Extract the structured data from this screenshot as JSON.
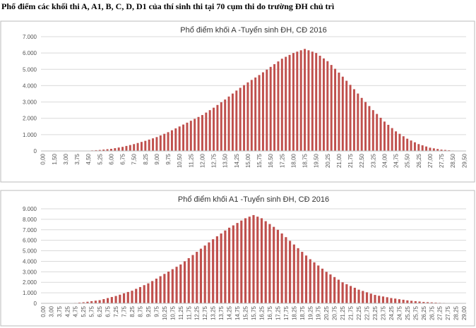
{
  "heading": "Phổ điểm các khối thi A, A1, B, C, D, D1 của thí sinh thi tại 70 cụm thi do trường ĐH chủ trì",
  "chart_data": [
    {
      "type": "bar",
      "title": "Phổ điểm khối A -Tuyển sinh ĐH, CĐ 2016",
      "color": "#c0504d",
      "grid": true,
      "ylim": [
        0,
        7000
      ],
      "yticks": [
        0,
        {
          "value": 1000,
          "label": "1.000"
        },
        {
          "value": 2000,
          "label": "2.000"
        },
        {
          "value": 3000,
          "label": "3.000"
        },
        {
          "value": 4000,
          "label": "4.000"
        },
        {
          "value": 5000,
          "label": "5.000"
        },
        {
          "value": 6000,
          "label": "6.000"
        },
        {
          "value": 7000,
          "label": "7.000"
        }
      ],
      "categories": [
        "0,00",
        null,
        null,
        "1,50",
        null,
        null,
        "3,00",
        null,
        null,
        "3,75",
        null,
        null,
        "4,50",
        null,
        null,
        "5,25",
        null,
        null,
        "6,00",
        null,
        null,
        "6,75",
        null,
        null,
        "7,50",
        null,
        null,
        "8,25",
        null,
        null,
        "9,00",
        null,
        null,
        "9,75",
        null,
        null,
        "10,50",
        null,
        null,
        "11,25",
        null,
        null,
        "12,00",
        null,
        null,
        "12,75",
        null,
        null,
        "13,50",
        null,
        null,
        "14,25",
        null,
        null,
        "15,00",
        null,
        null,
        "15,75",
        null,
        null,
        "16,50",
        null,
        null,
        "17,25",
        null,
        null,
        "18,00",
        null,
        null,
        "18,75",
        null,
        null,
        "19,50",
        null,
        null,
        "20,25",
        null,
        null,
        "21,00",
        null,
        null,
        "21,75",
        null,
        null,
        "22,50",
        null,
        null,
        "23,25",
        null,
        null,
        "24,00",
        null,
        null,
        "24,75",
        null,
        null,
        "25,50",
        null,
        null,
        "26,25",
        null,
        null,
        "27,00",
        null,
        null,
        "27,75",
        null,
        null,
        "28,50",
        null,
        null,
        "29,50"
      ],
      "values": [
        0,
        0,
        0,
        0,
        0,
        0,
        5,
        5,
        5,
        10,
        12,
        15,
        20,
        33,
        47,
        60,
        83,
        107,
        130,
        170,
        210,
        250,
        307,
        363,
        420,
        487,
        553,
        620,
        697,
        773,
        850,
        950,
        1050,
        1150,
        1267,
        1383,
        1500,
        1617,
        1733,
        1850,
        1967,
        2083,
        2200,
        2350,
        2500,
        2650,
        2817,
        2983,
        3150,
        3333,
        3517,
        3700,
        3867,
        4033,
        4200,
        4350,
        4500,
        4650,
        4817,
        4983,
        5150,
        5317,
        5483,
        5650,
        5767,
        5883,
        6000,
        6083,
        6167,
        6250,
        6167,
        6083,
        6000,
        5833,
        5667,
        5500,
        5267,
        5033,
        4800,
        4550,
        4300,
        4050,
        3783,
        3517,
        3250,
        3000,
        2750,
        2500,
        2267,
        2033,
        1800,
        1600,
        1400,
        1200,
        1050,
        900,
        750,
        640,
        530,
        420,
        347,
        273,
        200,
        160,
        120,
        80,
        62,
        43,
        25,
        17,
        8,
        0
      ]
    },
    {
      "type": "bar",
      "title": "Phổ điểm khối A1 -Tuyển sinh ĐH, CĐ 2016",
      "color": "#c0504d",
      "grid": true,
      "ylim": [
        0,
        9000
      ],
      "yticks": [
        0,
        {
          "value": 1000,
          "label": "1.000"
        },
        {
          "value": 2000,
          "label": "2.000"
        },
        {
          "value": 3000,
          "label": "3.000"
        },
        {
          "value": 4000,
          "label": "4.000"
        },
        {
          "value": 5000,
          "label": "5.000"
        },
        {
          "value": 6000,
          "label": "6.000"
        },
        {
          "value": 7000,
          "label": "7.000"
        },
        {
          "value": 8000,
          "label": "8.000"
        },
        {
          "value": 9000,
          "label": "9.000"
        }
      ],
      "categories": [
        "0,00",
        null,
        "3,00",
        null,
        "3,75",
        null,
        "4,25",
        null,
        "4,75",
        null,
        "5,25",
        null,
        "5,75",
        null,
        "6,25",
        null,
        "6,75",
        null,
        "7,25",
        null,
        "7,75",
        null,
        "8,25",
        null,
        "8,75",
        null,
        "9,25",
        null,
        "9,75",
        null,
        "10,25",
        null,
        "10,75",
        null,
        "11,25",
        null,
        "11,75",
        null,
        "12,25",
        null,
        "12,75",
        null,
        "13,25",
        null,
        "13,75",
        null,
        "14,25",
        null,
        "14,75",
        null,
        "15,25",
        null,
        "15,75",
        null,
        "16,25",
        null,
        "16,75",
        null,
        "17,25",
        null,
        "17,75",
        null,
        "18,25",
        null,
        "18,75",
        null,
        "19,25",
        null,
        "19,75",
        null,
        "20,25",
        null,
        "20,75",
        null,
        "21,25",
        null,
        "21,75",
        null,
        "22,25",
        null,
        "22,75",
        null,
        "23,25",
        null,
        "23,75",
        null,
        "24,25",
        null,
        "24,75",
        null,
        "25,25",
        null,
        "25,75",
        null,
        "26,25",
        null,
        "26,75",
        null,
        "27,25",
        null,
        "27,75",
        null,
        "28,25",
        null,
        "29,00"
      ],
      "values": [
        0,
        0,
        0,
        0,
        5,
        10,
        20,
        30,
        40,
        70,
        100,
        150,
        200,
        250,
        300,
        400,
        500,
        600,
        700,
        820,
        950,
        1080,
        1200,
        1380,
        1550,
        1730,
        1900,
        2120,
        2350,
        2580,
        2800,
        3020,
        3250,
        3480,
        3700,
        4000,
        4300,
        4600,
        4900,
        5200,
        5500,
        5800,
        6100,
        6380,
        6650,
        6930,
        7200,
        7420,
        7650,
        7880,
        8100,
        8250,
        8400,
        8250,
        8100,
        7820,
        7550,
        7280,
        7000,
        6650,
        6300,
        5950,
        5600,
        5250,
        4900,
        4550,
        4200,
        3900,
        3600,
        3300,
        3000,
        2750,
        2500,
        2250,
        2000,
        1820,
        1650,
        1480,
        1300,
        1180,
        1050,
        920,
        800,
        720,
        650,
        580,
        500,
        450,
        390,
        340,
        280,
        240,
        200,
        170,
        130,
        110,
        90,
        70,
        50,
        40,
        30,
        20,
        15,
        10,
        5
      ]
    }
  ]
}
